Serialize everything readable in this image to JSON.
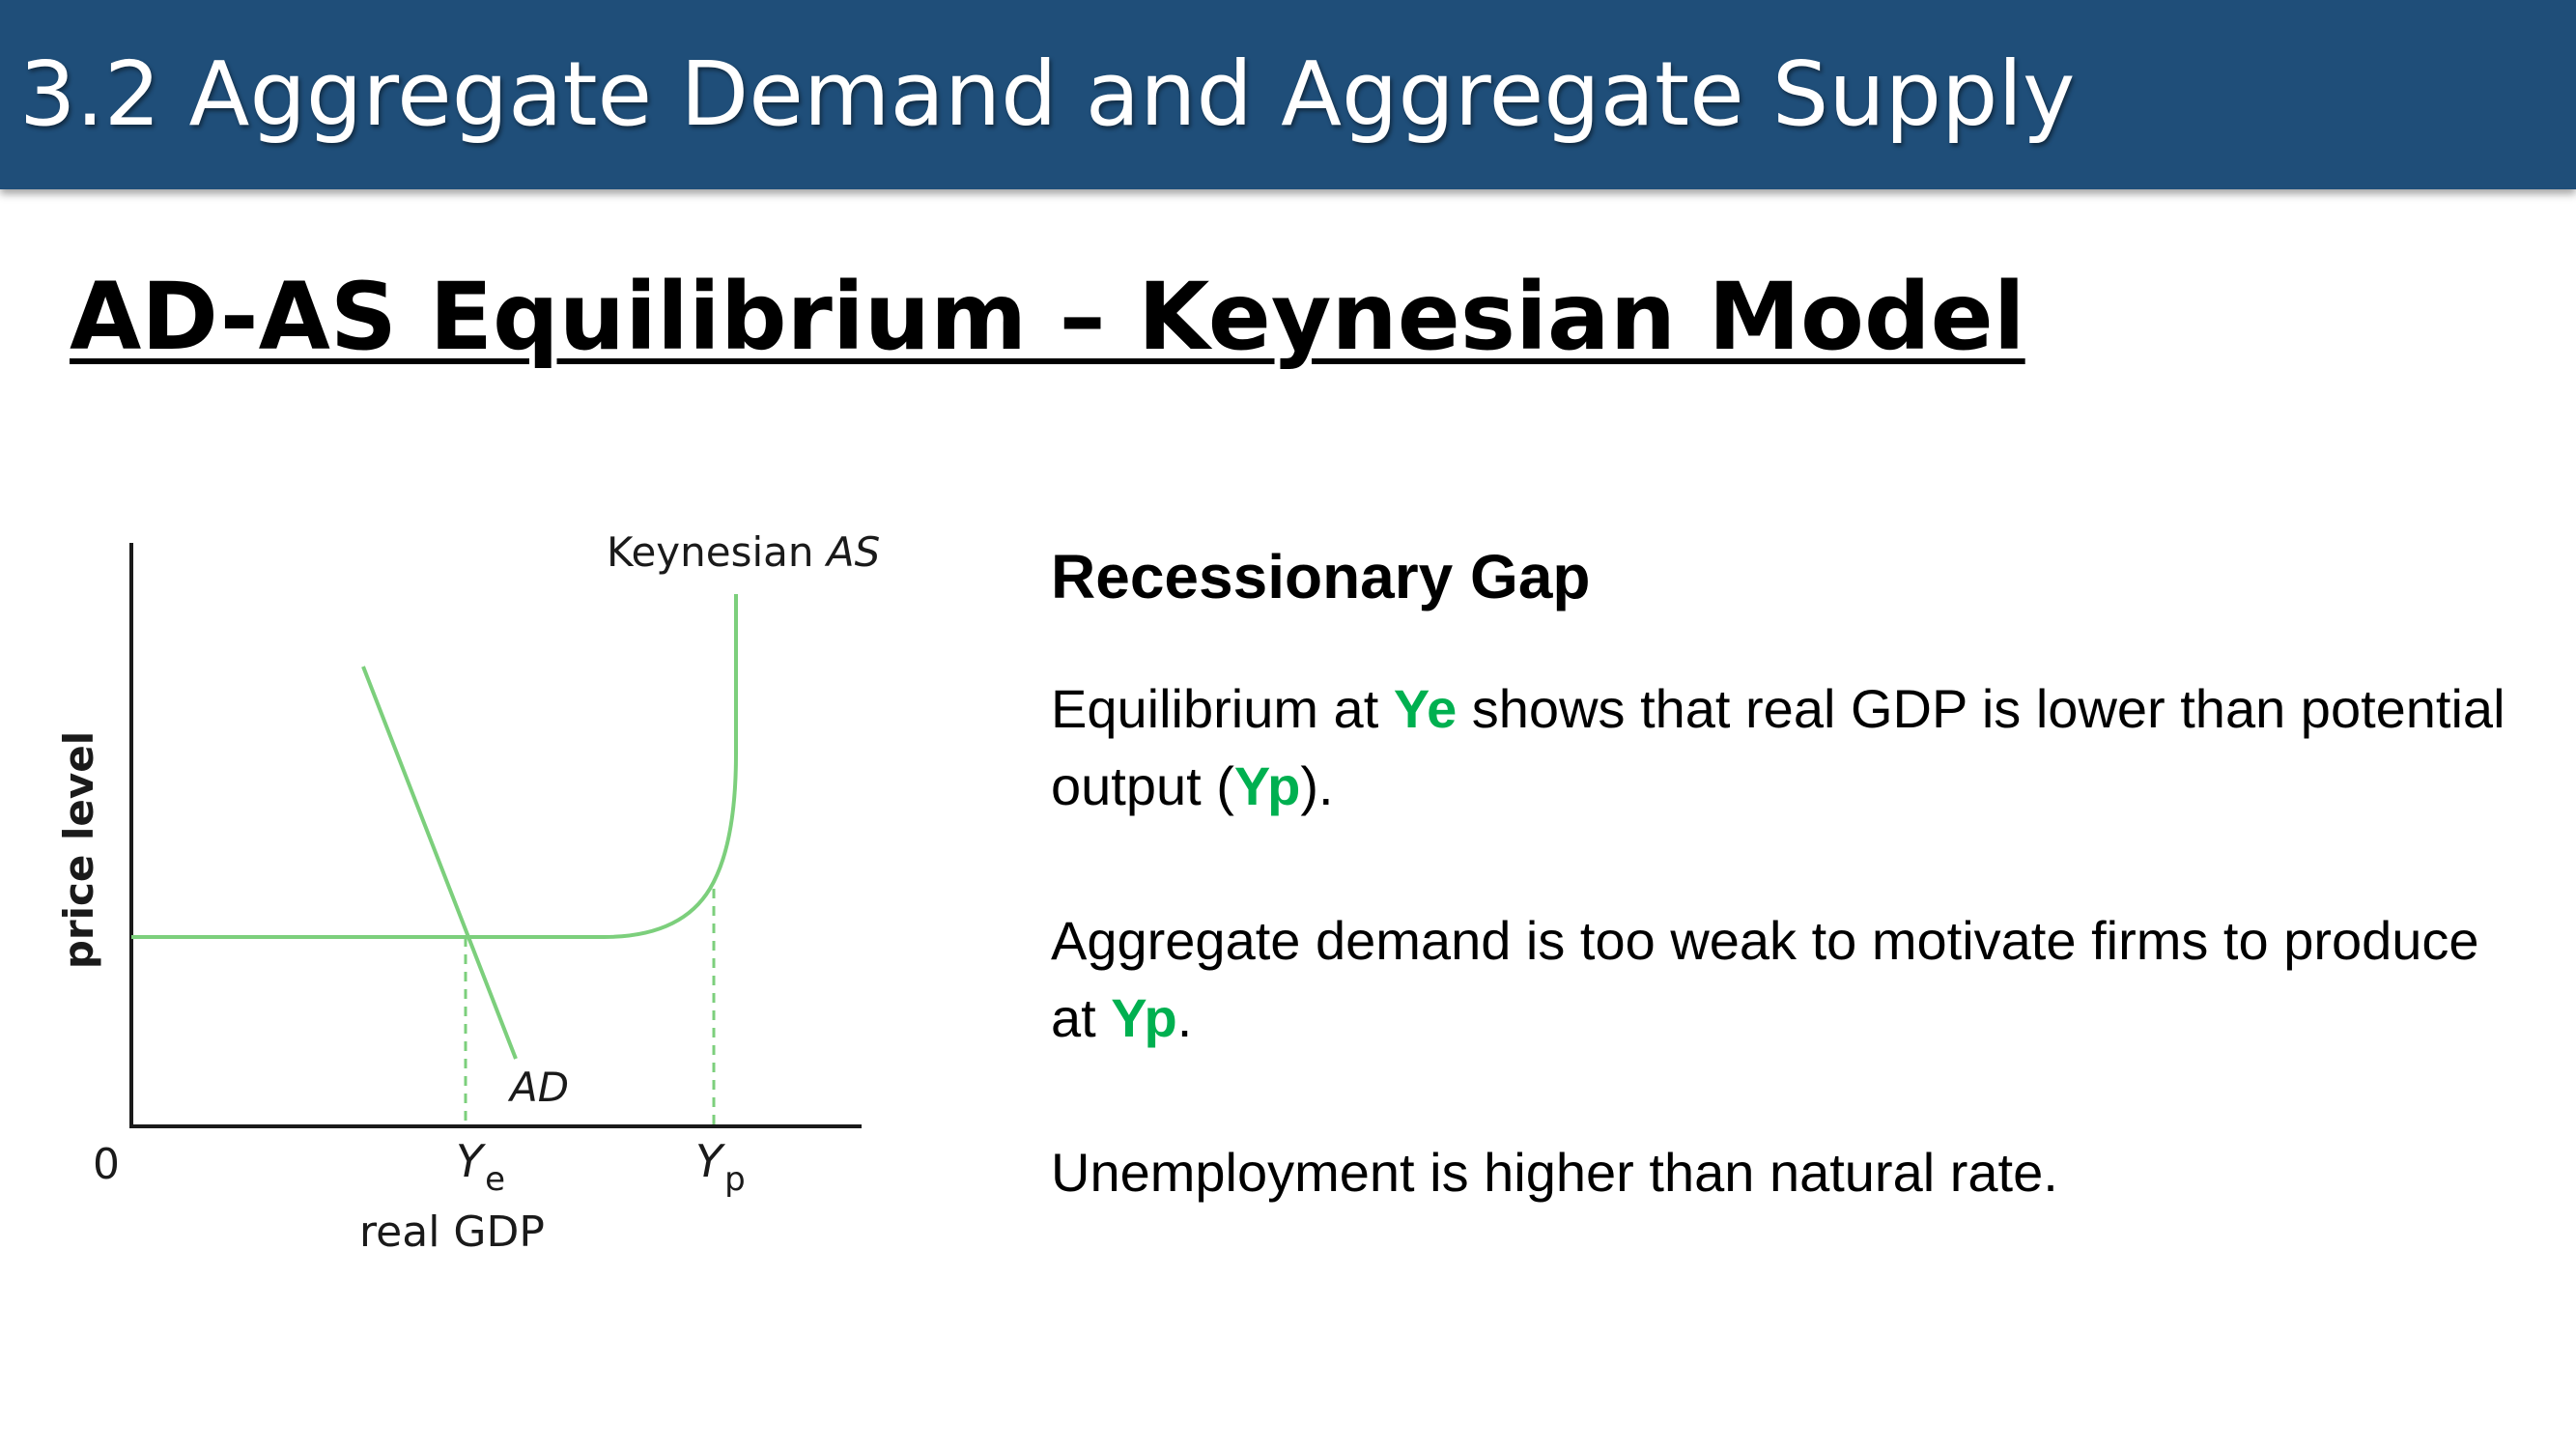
{
  "header": {
    "title": "3.2 Aggregate Demand and Aggregate Supply"
  },
  "slide": {
    "title": "AD-AS Equilibrium – Keynesian Model"
  },
  "diagram": {
    "y_axis_label": "price level",
    "x_axis_label": "real GDP",
    "origin_label": "0",
    "as_curve_label": {
      "prefix": "Keynesian ",
      "italic": "AS"
    },
    "ad_curve_label": "AD",
    "ye_label": {
      "main": "Y",
      "sub": "e"
    },
    "yp_label": {
      "main": "Y",
      "sub": "p"
    },
    "curve_color": "#7ccf7c"
  },
  "content": {
    "heading": "Recessionary Gap",
    "p1": {
      "a": "Equilibrium at ",
      "h1": "Ye",
      "b": " shows that real GDP is lower than potential output (",
      "h2": "Yp",
      "c": ")."
    },
    "p2": {
      "a": "Aggregate demand is too weak to motivate firms to produce at ",
      "h1": "Yp",
      "b": "."
    },
    "p3": "Unemployment is higher than natural rate.",
    "highlight_color": "#00b050"
  }
}
